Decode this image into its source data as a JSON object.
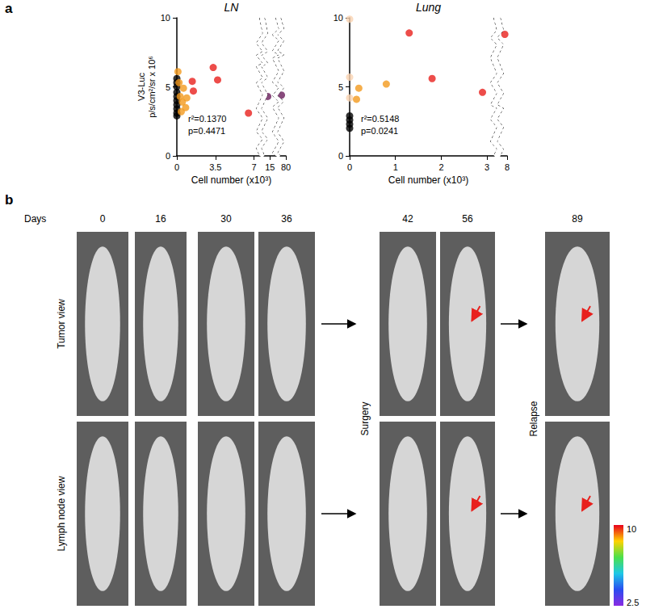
{
  "panel_a_label": "a",
  "chart_data": [
    {
      "type": "scatter",
      "title": "LN",
      "x_label": "Cell number (x10³)",
      "y_label": "V3-Luc\np/s/cm²/sr x 10⁶",
      "xlim": [
        0,
        80
      ],
      "xticks": [
        0,
        3.5,
        7,
        15,
        80
      ],
      "ylim": [
        0,
        10
      ],
      "yticks": [
        0,
        5,
        10
      ],
      "annotations": [
        "r²=0.1370",
        "p=0.4471"
      ],
      "series": [
        {
          "color": "#000000",
          "x": [
            0,
            0,
            0,
            0,
            0,
            0,
            0,
            0,
            0,
            0
          ],
          "values": [
            5.6,
            5.3,
            5.0,
            4.6,
            4.3,
            4.0,
            3.7,
            3.4,
            3.1,
            2.9
          ]
        },
        {
          "color": "#f39a1e",
          "x": [
            0.1,
            0.2,
            0.3,
            0.4,
            0.5,
            0.6,
            0.8,
            0.9
          ],
          "values": [
            6.1,
            5.3,
            4.3,
            3.2,
            3.9,
            4.9,
            3.5,
            4.2
          ]
        },
        {
          "color": "#e8201d",
          "x": [
            1.4,
            1.5,
            3.3,
            3.7,
            6.5
          ],
          "values": [
            5.4,
            4.7,
            6.4,
            5.5,
            3.1
          ]
        },
        {
          "color": "#6a1d5c",
          "x": [
            14.8,
            79.6
          ],
          "values": [
            4.3,
            4.4
          ]
        }
      ]
    },
    {
      "type": "scatter",
      "title": "Lung",
      "x_label": "Cell number (x10³)",
      "xlim": [
        0,
        8
      ],
      "xticks": [
        0,
        1,
        2,
        3,
        8
      ],
      "ylim": [
        0,
        10
      ],
      "yticks": [
        0,
        5,
        10
      ],
      "annotations": [
        "r²=0.5148",
        "p=0.0241"
      ],
      "series": [
        {
          "color": "#000000",
          "x": [
            0,
            0,
            0,
            0
          ],
          "values": [
            2.9,
            2.6,
            2.3,
            2.0
          ]
        },
        {
          "color": "#f9d2b0",
          "x": [
            0,
            0,
            0
          ],
          "values": [
            9.9,
            5.7,
            4.2
          ]
        },
        {
          "color": "#f39a1e",
          "x": [
            0.15,
            0.2,
            0.8
          ],
          "values": [
            4.1,
            4.9,
            5.2
          ]
        },
        {
          "color": "#e8201d",
          "x": [
            1.3,
            1.8,
            2.9,
            7.95
          ],
          "values": [
            8.9,
            5.6,
            4.6,
            8.8
          ]
        }
      ]
    }
  ],
  "panel_b": {
    "label": "b",
    "days_label": "Days",
    "days": [
      0,
      16,
      30,
      36,
      42,
      56,
      89
    ],
    "rows": [
      "Tumor view",
      "Lymph node view"
    ],
    "events": [
      "Surgery",
      "Relapse"
    ],
    "colorbar": {
      "max": 10,
      "min": 2.5
    }
  }
}
